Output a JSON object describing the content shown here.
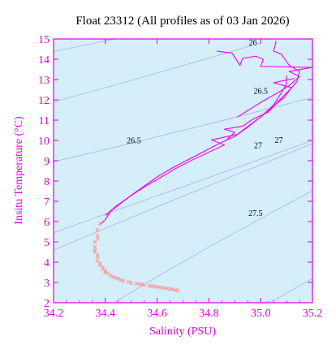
{
  "chart_data": {
    "type": "line",
    "title": "Float 23312  (All profiles as of 03 Jan 2026)",
    "xlabel": "Salinity (PSU)",
    "ylabel": "Insitu Temperature (°C)",
    "xlim": [
      34.2,
      35.2
    ],
    "ylim": [
      2,
      15
    ],
    "x_ticks": [
      "34.2",
      "34.4",
      "34.6",
      "34.8",
      "35.0",
      "35.2"
    ],
    "y_ticks": [
      "2",
      "3",
      "4",
      "5",
      "6",
      "7",
      "8",
      "9",
      "10",
      "11",
      "12",
      "13",
      "14",
      "15"
    ],
    "grid": false,
    "colors": {
      "plot_background": "#d4effa",
      "axis": "#dd00dd",
      "profile_line": "#ee11ee",
      "deep_markers": "#f0a0a0",
      "density_contours": "#b8a8e8"
    },
    "density_contours": [
      {
        "label": "26",
        "points": [
          [
            34.2,
            14.38
          ],
          [
            34.4,
            14.9
          ],
          [
            34.6,
            15.48
          ],
          [
            34.8,
            16.08
          ]
        ],
        "labels": [
          {
            "s": 34.97,
            "t": 14.8
          }
        ]
      },
      {
        "label": "26.5",
        "points": [
          [
            34.2,
            11.9
          ],
          [
            34.4,
            12.6
          ],
          [
            34.6,
            13.32
          ],
          [
            34.8,
            14.06
          ],
          [
            35.0,
            14.8
          ]
        ],
        "labels": [
          {
            "s": 35.0,
            "t": 12.42
          }
        ]
      },
      {
        "label": "26.5",
        "points": [
          [
            34.2,
            8.95
          ],
          [
            34.4,
            9.55
          ],
          [
            34.6,
            10.18
          ],
          [
            34.8,
            10.81
          ],
          [
            35.0,
            11.46
          ],
          [
            35.2,
            12.12
          ]
        ],
        "labels": [
          {
            "s": 34.51,
            "t": 9.98
          }
        ]
      },
      {
        "label": "27",
        "points": [
          [
            34.2,
            5.45
          ],
          [
            34.4,
            6.37
          ],
          [
            34.6,
            7.27
          ],
          [
            34.8,
            8.17
          ],
          [
            35.0,
            9.08
          ],
          [
            35.2,
            10.0
          ]
        ],
        "labels": [
          {
            "s": 34.99,
            "t": 9.75
          }
        ]
      },
      {
        "label": "27",
        "points": [
          [
            34.2,
            4.6
          ],
          [
            34.4,
            5.67
          ],
          [
            34.6,
            6.73
          ],
          [
            34.8,
            7.77
          ],
          [
            35.0,
            8.8
          ],
          [
            35.2,
            9.84
          ]
        ],
        "labels": [
          {
            "s": 35.07,
            "t": 10.0
          }
        ]
      },
      {
        "label": "27.5",
        "points": [
          [
            34.4,
            1.75
          ],
          [
            34.6,
            3.28
          ],
          [
            34.8,
            4.75
          ],
          [
            35.0,
            6.15
          ],
          [
            35.2,
            7.52
          ]
        ],
        "labels": [
          {
            "s": 34.98,
            "t": 6.4
          }
        ]
      },
      {
        "label": "",
        "points": [
          [
            34.9,
            1.8
          ],
          [
            35.05,
            2.1
          ],
          [
            35.2,
            3.2
          ]
        ],
        "labels": []
      }
    ],
    "series": [
      {
        "style": "line",
        "profiles": [
          [
            [
              34.38,
              5.85
            ],
            [
              34.4,
              6.1
            ],
            [
              34.42,
              6.5
            ],
            [
              34.46,
              6.9
            ],
            [
              34.5,
              7.3
            ],
            [
              34.55,
              7.75
            ],
            [
              34.6,
              8.2
            ],
            [
              34.66,
              8.65
            ],
            [
              34.72,
              9.05
            ],
            [
              34.78,
              9.45
            ],
            [
              34.84,
              9.85
            ],
            [
              34.9,
              10.2
            ],
            [
              34.95,
              10.65
            ],
            [
              35.0,
              11.15
            ],
            [
              35.05,
              11.75
            ],
            [
              35.08,
              12.35
            ],
            [
              35.1,
              12.8
            ],
            [
              35.1,
              13.2
            ]
          ],
          [
            [
              34.4,
              6.3
            ],
            [
              34.44,
              6.75
            ],
            [
              34.49,
              7.2
            ],
            [
              34.55,
              7.7
            ],
            [
              34.61,
              8.15
            ],
            [
              34.67,
              8.6
            ],
            [
              34.73,
              9.0
            ],
            [
              34.8,
              9.42
            ],
            [
              34.86,
              9.78
            ],
            [
              34.81,
              10.02
            ],
            [
              34.91,
              10.3
            ],
            [
              34.96,
              10.78
            ],
            [
              35.02,
              11.35
            ],
            [
              35.07,
              11.95
            ],
            [
              35.12,
              12.6
            ],
            [
              35.05,
              12.85
            ],
            [
              35.13,
              13.05
            ]
          ],
          [
            [
              34.87,
              10.05
            ],
            [
              34.9,
              10.4
            ],
            [
              34.86,
              10.55
            ],
            [
              34.93,
              10.7
            ],
            [
              34.97,
              11.05
            ],
            [
              35.03,
              11.4
            ],
            [
              35.06,
              11.8
            ],
            [
              35.09,
              12.1
            ],
            [
              35.11,
              12.45
            ],
            [
              35.14,
              12.9
            ],
            [
              35.15,
              13.4
            ],
            [
              35.11,
              13.7
            ],
            [
              35.08,
              14.25
            ],
            [
              35.05,
              14.4
            ],
            [
              35.06,
              14.9
            ]
          ],
          [
            [
              34.91,
              11.15
            ],
            [
              34.96,
              11.55
            ],
            [
              35.01,
              11.95
            ],
            [
              35.06,
              12.3
            ],
            [
              35.11,
              12.7
            ],
            [
              35.15,
              13.15
            ],
            [
              35.11,
              13.4
            ],
            [
              35.2,
              13.6
            ],
            [
              35.0,
              13.65
            ],
            [
              35.01,
              14.0
            ],
            [
              34.98,
              14.15
            ],
            [
              34.93,
              14.05
            ],
            [
              34.92,
              13.7
            ],
            [
              34.89,
              14.3
            ],
            [
              34.83,
              14.4
            ]
          ]
        ]
      },
      {
        "style": "markers",
        "points": [
          [
            34.38,
            5.9
          ],
          [
            34.37,
            5.6
          ],
          [
            34.37,
            5.3
          ],
          [
            34.36,
            5.0
          ],
          [
            34.36,
            4.75
          ],
          [
            34.36,
            4.5
          ],
          [
            34.37,
            4.25
          ],
          [
            34.37,
            4.05
          ],
          [
            34.38,
            3.85
          ],
          [
            34.39,
            3.65
          ],
          [
            34.4,
            3.5
          ],
          [
            34.42,
            3.35
          ],
          [
            34.44,
            3.22
          ],
          [
            34.46,
            3.12
          ],
          [
            34.49,
            3.03
          ],
          [
            34.52,
            2.95
          ],
          [
            34.55,
            2.88
          ],
          [
            34.58,
            2.82
          ],
          [
            34.61,
            2.76
          ],
          [
            34.64,
            2.7
          ],
          [
            34.66,
            2.65
          ],
          [
            34.68,
            2.6
          ],
          [
            34.36,
            4.6
          ],
          [
            34.38,
            3.95
          ],
          [
            34.4,
            3.55
          ],
          [
            34.43,
            3.28
          ],
          [
            34.47,
            3.08
          ],
          [
            34.5,
            2.98
          ],
          [
            34.54,
            2.9
          ],
          [
            34.57,
            2.84
          ],
          [
            34.6,
            2.78
          ],
          [
            34.63,
            2.72
          ],
          [
            34.65,
            2.68
          ],
          [
            34.67,
            2.62
          ],
          [
            34.37,
            5.15
          ],
          [
            34.37,
            4.35
          ],
          [
            34.39,
            3.75
          ],
          [
            34.41,
            3.45
          ],
          [
            34.45,
            3.18
          ],
          [
            34.53,
            2.93
          ],
          [
            34.59,
            2.8
          ],
          [
            34.62,
            2.74
          ],
          [
            34.66,
            2.66
          ]
        ]
      }
    ]
  }
}
